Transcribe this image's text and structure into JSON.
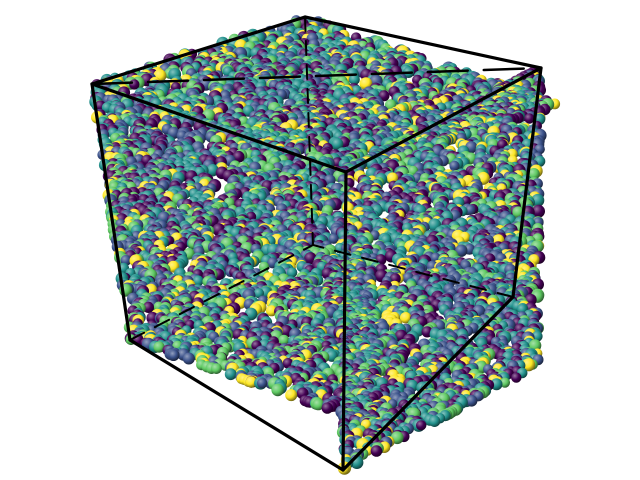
{
  "scene": {
    "subject": "polymer-chain-bead-simulation-box",
    "background_color": "#ffffff",
    "edge_color": "#000000",
    "bead_palette": [
      "#440154",
      "#3b528b",
      "#21918c",
      "#5ec962",
      "#fde725"
    ],
    "bead_palette_weights": [
      0.22,
      0.24,
      0.28,
      0.16,
      0.1
    ]
  }
}
